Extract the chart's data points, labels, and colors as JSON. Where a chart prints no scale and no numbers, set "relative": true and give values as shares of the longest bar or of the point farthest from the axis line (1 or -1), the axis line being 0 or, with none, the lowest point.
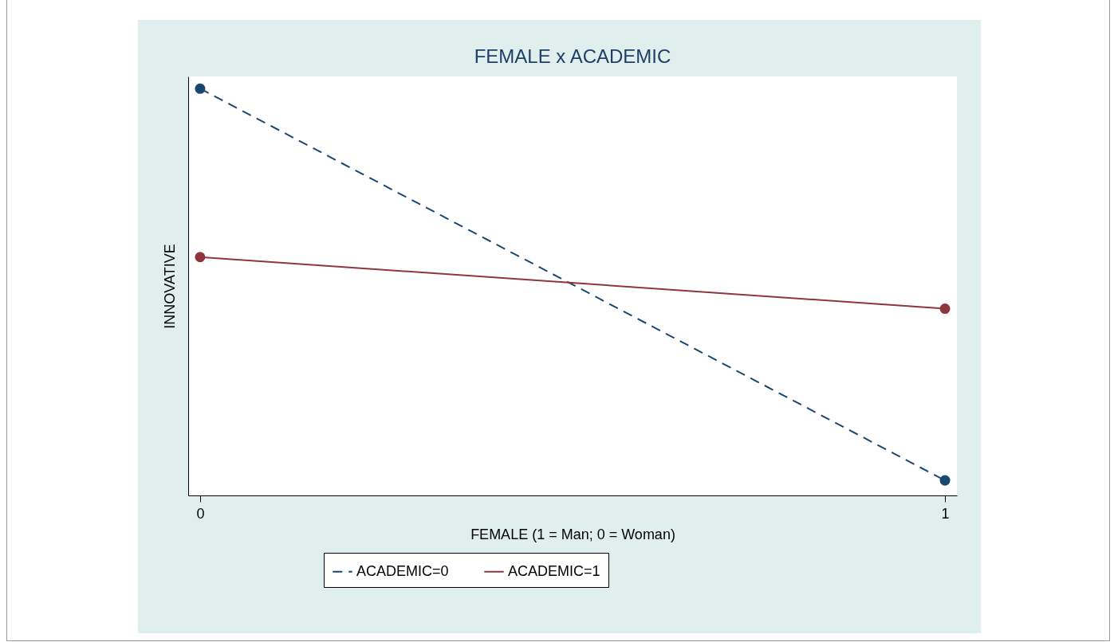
{
  "chart_data": {
    "type": "line",
    "title": "FEMALE x ACADEMIC",
    "xlabel": "FEMALE (1 = Man; 0 = Woman)",
    "ylabel": "INNOVATIVE",
    "relative": true,
    "x": [
      0,
      1
    ],
    "xlim": [
      -0.016,
      1.016
    ],
    "xticks": [
      0,
      1
    ],
    "marker": "circle",
    "legend": "bottom",
    "grid": false,
    "series": [
      {
        "name": "ACADEMIC=0",
        "color": "#1a476f",
        "line_style": "dashed",
        "values": [
          1,
          0.037
        ]
      },
      {
        "name": "ACADEMIC=1",
        "color": "#90353b",
        "line_style": "solid",
        "values": [
          0.586,
          0.459
        ]
      }
    ]
  }
}
